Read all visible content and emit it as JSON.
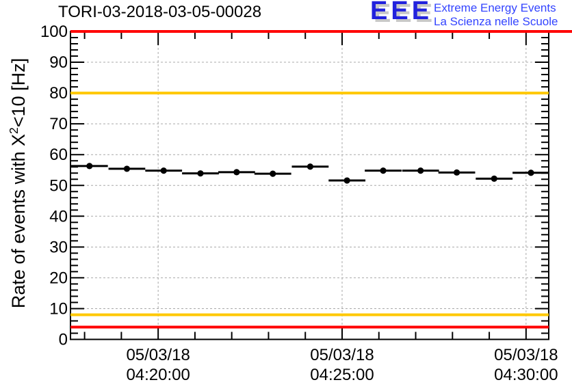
{
  "header": {
    "title": "TORI-03-2018-03-05-00028",
    "logo": {
      "acronym": "EEE",
      "line1": "Extreme Energy Events",
      "line2": "La Scienza nelle Scuole",
      "accent_blue": "#2222dd",
      "text_blue": "#3344ff",
      "shadow_gray": "#c8c8c8"
    }
  },
  "chart_data": {
    "type": "scatter",
    "title": "TORI-03-2018-03-05-00028",
    "ylabel_pre": "Rate of events with X",
    "ylabel_sup": "2",
    "ylabel_post": "<10 [Hz]",
    "ylim": [
      0,
      100
    ],
    "y_major_step": 10,
    "y_minor_step": 2,
    "x_start": "04:17:37",
    "x_end": "04:30:37",
    "x_minor_step_seconds": 60,
    "x_major_ticks": [
      {
        "date": "05/03/18",
        "time": "04:20:00"
      },
      {
        "date": "05/03/18",
        "time": "04:25:00"
      },
      {
        "date": "05/03/18",
        "time": "04:30:00"
      }
    ],
    "grid": true,
    "grid_color": "#a8a8a8",
    "frame_color": "#000000",
    "marker_color": "#000000",
    "bin_half_width_seconds": 30,
    "threshold_lines": [
      {
        "value": 100,
        "color": "#ff0000",
        "full_width": true
      },
      {
        "value": 80,
        "color": "#ffc800",
        "full_width": false
      },
      {
        "value": 8,
        "color": "#ffc800",
        "full_width": false
      },
      {
        "value": 4,
        "color": "#ff0000",
        "full_width": false
      }
    ],
    "points": [
      {
        "date": "05/03/18",
        "time": "04:18:08",
        "rate": 56.3
      },
      {
        "date": "05/03/18",
        "time": "04:19:09",
        "rate": 55.4
      },
      {
        "date": "05/03/18",
        "time": "04:20:09",
        "rate": 54.8
      },
      {
        "date": "05/03/18",
        "time": "04:21:09",
        "rate": 53.9
      },
      {
        "date": "05/03/18",
        "time": "04:22:08",
        "rate": 54.3
      },
      {
        "date": "05/03/18",
        "time": "04:23:07",
        "rate": 53.8
      },
      {
        "date": "05/03/18",
        "time": "04:24:08",
        "rate": 56.1
      },
      {
        "date": "05/03/18",
        "time": "04:25:08",
        "rate": 51.6
      },
      {
        "date": "05/03/18",
        "time": "04:26:07",
        "rate": 54.8
      },
      {
        "date": "05/03/18",
        "time": "04:27:08",
        "rate": 54.8
      },
      {
        "date": "05/03/18",
        "time": "04:28:07",
        "rate": 54.2
      },
      {
        "date": "05/03/18",
        "time": "04:29:08",
        "rate": 52.2
      },
      {
        "date": "05/03/18",
        "time": "04:30:08",
        "rate": 54.1
      }
    ]
  }
}
